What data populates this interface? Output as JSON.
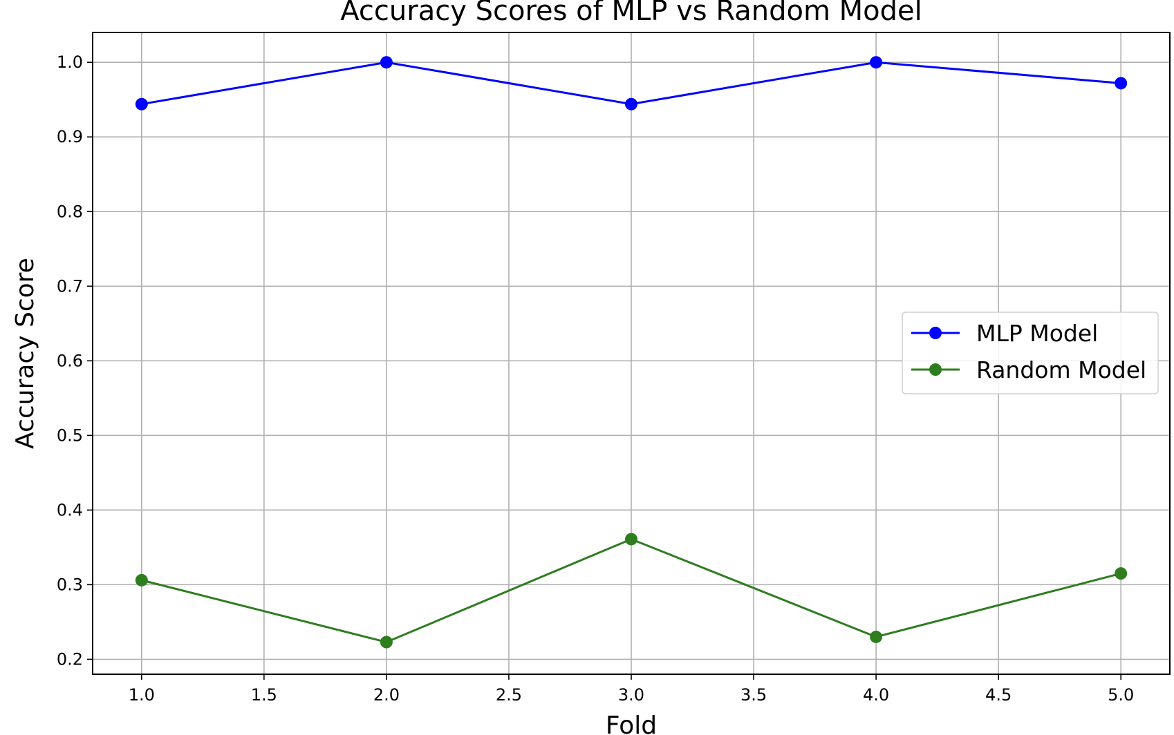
{
  "chart_data": {
    "type": "line",
    "title": "Accuracy Scores of MLP vs Random Model",
    "xlabel": "Fold",
    "ylabel": "Accuracy Score",
    "x": [
      1,
      2,
      3,
      4,
      5
    ],
    "xlim": [
      0.8,
      5.2
    ],
    "ylim": [
      0.18,
      1.04
    ],
    "xticks": [
      1.0,
      1.5,
      2.0,
      2.5,
      3.0,
      3.5,
      4.0,
      4.5,
      5.0
    ],
    "xtick_labels": [
      "1.0",
      "1.5",
      "2.0",
      "2.5",
      "3.0",
      "3.5",
      "4.0",
      "4.5",
      "5.0"
    ],
    "yticks": [
      0.2,
      0.3,
      0.4,
      0.5,
      0.6,
      0.7,
      0.8,
      0.9,
      1.0
    ],
    "ytick_labels": [
      "0.2",
      "0.3",
      "0.4",
      "0.5",
      "0.6",
      "0.7",
      "0.8",
      "0.9",
      "1.0"
    ],
    "grid": true,
    "legend_position": "right",
    "series": [
      {
        "name": "MLP Model",
        "color": "#0000ff",
        "marker": "circle",
        "values": [
          0.944,
          1.0,
          0.944,
          1.0,
          0.972
        ]
      },
      {
        "name": "Random Model",
        "color": "#2e7d1f",
        "marker": "circle",
        "values": [
          0.306,
          0.223,
          0.361,
          0.23,
          0.315
        ]
      }
    ]
  }
}
